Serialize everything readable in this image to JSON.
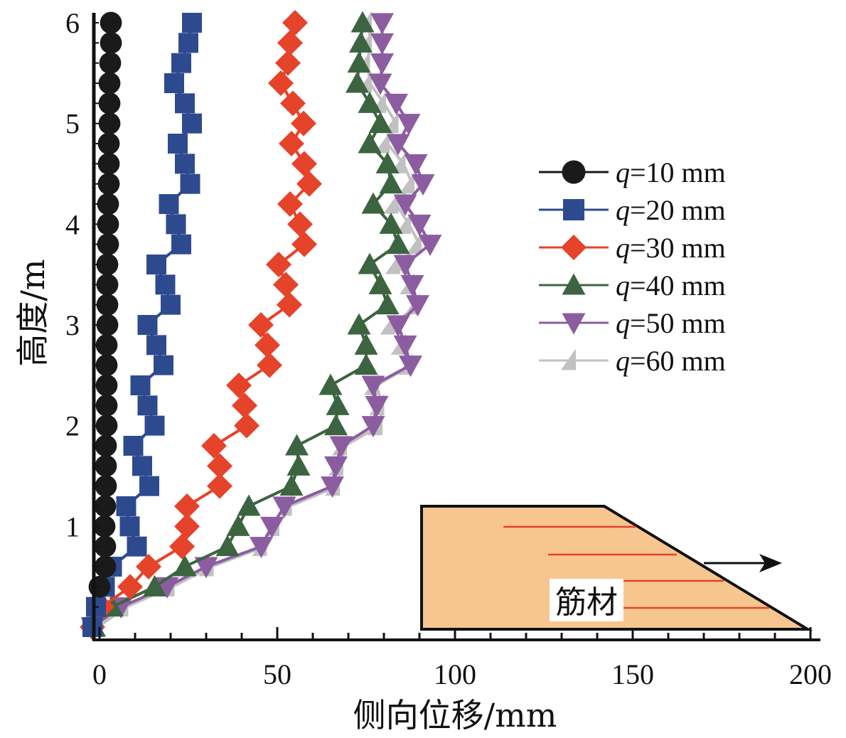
{
  "chart_data": {
    "type": "line",
    "title": "",
    "xlabel": "侧向位移/mm",
    "ylabel": "高度/m",
    "xlim": [
      0,
      200
    ],
    "ylim": [
      0,
      6
    ],
    "x_ticks": [
      "0",
      "50",
      "100",
      "150",
      "200"
    ],
    "y_ticks": [
      "1",
      "2",
      "3",
      "4",
      "5",
      "6"
    ],
    "grid": false,
    "legend_position": "right",
    "orientation": "x is lateral displacement, y is height",
    "y": [
      6.0,
      5.8,
      5.6,
      5.4,
      5.2,
      5.0,
      4.8,
      4.6,
      4.4,
      4.2,
      4.0,
      3.8,
      3.6,
      3.4,
      3.2,
      3.0,
      2.8,
      2.6,
      2.4,
      2.2,
      2.0,
      1.8,
      1.6,
      1.4,
      1.2,
      1.0,
      0.8,
      0.6,
      0.4,
      0.2,
      0.0
    ],
    "series": [
      {
        "name": "q=10 mm",
        "q_label": "q",
        "q_rest": "=10 mm",
        "color": "#1a1a1a",
        "marker": "circle",
        "x": [
          3.2,
          3.2,
          3.0,
          2.8,
          2.8,
          2.8,
          2.6,
          2.6,
          2.6,
          2.4,
          2.4,
          2.4,
          2.2,
          2.2,
          2.2,
          2.2,
          2.0,
          2.0,
          2.0,
          2.0,
          2.0,
          1.8,
          1.8,
          1.8,
          1.6,
          1.4,
          1.6,
          1.6,
          0.0,
          null,
          null
        ]
      },
      {
        "name": "q=20 mm",
        "q_label": "q",
        "q_rest": "=20 mm",
        "color": "#2e4a8f",
        "marker": "square",
        "x": [
          26.0,
          25.0,
          23.0,
          21.0,
          24.0,
          26.0,
          22.0,
          24.0,
          25.5,
          19.5,
          21.5,
          23.0,
          16.0,
          18.5,
          20.0,
          13.5,
          16.0,
          18.0,
          11.5,
          13.5,
          15.5,
          9.5,
          12.0,
          14.0,
          7.5,
          8.5,
          10.5,
          3.5,
          1.5,
          -1.0,
          -2.0
        ]
      },
      {
        "name": "q=30 mm",
        "q_label": "q",
        "q_rest": "=30 mm",
        "color": "#e5432a",
        "marker": "diamond",
        "x": [
          55.0,
          53.6,
          53.0,
          51.0,
          54.4,
          57.4,
          54.0,
          57.6,
          59.0,
          53.6,
          56.4,
          57.6,
          50.4,
          52.4,
          53.4,
          45.4,
          47.2,
          47.8,
          39.2,
          40.8,
          41.4,
          32.2,
          33.8,
          33.8,
          24.6,
          24.6,
          23.2,
          13.8,
          8.6,
          0.6,
          -2.0
        ]
      },
      {
        "name": "q=40 mm",
        "q_label": "q",
        "q_rest": "=40 mm",
        "color": "#3d6440",
        "marker": "triangle-up",
        "x": [
          74.0,
          73.5,
          73.0,
          72.5,
          76.0,
          79.0,
          76.0,
          81.0,
          82.0,
          77.0,
          82.0,
          84.0,
          76.0,
          79.0,
          81.0,
          73.0,
          75.0,
          75.0,
          65.0,
          67.0,
          66.5,
          55.5,
          56.0,
          54.0,
          42.0,
          39.0,
          36.0,
          24.0,
          15.5,
          3.5,
          -1.5
        ]
      },
      {
        "name": "q=50 mm",
        "q_label": "q",
        "q_rest": "=50 mm",
        "color": "#8b5da0",
        "marker": "triangle-down",
        "x": [
          79.5,
          79.5,
          79.5,
          79.0,
          83.5,
          87.0,
          84.0,
          89.0,
          91.0,
          86.0,
          90.0,
          93.0,
          86.0,
          88.0,
          89.5,
          84.0,
          86.0,
          87.5,
          77.0,
          78.0,
          77.0,
          68.0,
          66.5,
          65.5,
          52.0,
          48.5,
          45.5,
          30.0,
          19.0,
          6.0,
          -2.0
        ]
      },
      {
        "name": "q=60 mm",
        "q_label": "q",
        "q_rest": "=60 mm",
        "color": "#c1c1c1",
        "marker": "triangle-half",
        "x": [
          76.0,
          76.0,
          75.5,
          76.0,
          80.0,
          83.5,
          81.0,
          85.5,
          88.0,
          83.5,
          87.0,
          90.0,
          84.0,
          88.0,
          89.5,
          82.5,
          85.5,
          87.5,
          78.0,
          79.5,
          79.0,
          69.0,
          68.0,
          67.0,
          53.5,
          50.0,
          46.5,
          31.5,
          20.5,
          7.5,
          -0.5
        ]
      }
    ],
    "inset": {
      "label": "筋材",
      "fill_color": "#f7c690",
      "reinforcement_color": "#e5432a",
      "reinforcement_count": 4,
      "arrow": "right"
    }
  }
}
